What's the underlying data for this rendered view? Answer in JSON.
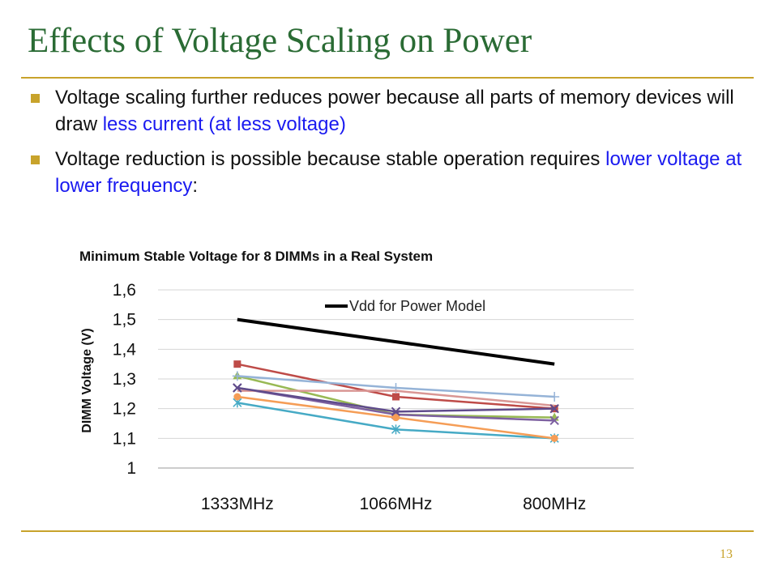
{
  "slide": {
    "title": "Effects of Voltage Scaling on Power",
    "bullets": [
      {
        "before": "Voltage scaling further reduces power because all parts of memory devices will draw ",
        "highlight": "less current (at less voltage)",
        "after": ""
      },
      {
        "before": "Voltage reduction is possible because stable operation requires ",
        "highlight": "lower voltage at lower frequency",
        "after": ":"
      }
    ],
    "page_number": "13",
    "colors": {
      "title": "#2a6b34",
      "rule": "#c8a32b",
      "highlight": "#1a1af0"
    }
  },
  "chart_data": {
    "type": "line",
    "title": "Minimum Stable Voltage for 8 DIMMs in a Real System",
    "xlabel": "",
    "ylabel": "DIMM Voltage (V)",
    "categories": [
      "1333MHz",
      "1066MHz",
      "800MHz"
    ],
    "ylim": [
      1,
      1.6
    ],
    "yticks": [
      "1",
      "1,1",
      "1,2",
      "1,3",
      "1,4",
      "1,5",
      "1,6"
    ],
    "grid": true,
    "legend_position": "top-right",
    "series": [
      {
        "name": "Vdd for Power Model",
        "values": [
          1.5,
          1.425,
          1.35
        ],
        "color": "#000000",
        "marker": "none",
        "width": 4
      },
      {
        "values": [
          1.35,
          1.24,
          1.2
        ],
        "color": "#be4b48",
        "marker": "square",
        "width": 2.5
      },
      {
        "values": [
          1.31,
          1.18,
          1.17
        ],
        "color": "#98b954",
        "marker": "triangle",
        "width": 2.5
      },
      {
        "values": [
          1.27,
          1.18,
          1.16
        ],
        "color": "#7d60a0",
        "marker": "x",
        "width": 2.5
      },
      {
        "values": [
          1.22,
          1.13,
          1.1
        ],
        "color": "#46aac5",
        "marker": "star",
        "width": 2.5
      },
      {
        "values": [
          1.24,
          1.17,
          1.1
        ],
        "color": "#f59d56",
        "marker": "circle",
        "width": 2.5
      },
      {
        "values": [
          1.31,
          1.27,
          1.24
        ],
        "color": "#95b3d7",
        "marker": "plus",
        "width": 2.5
      },
      {
        "values": [
          1.26,
          1.26,
          1.21
        ],
        "color": "#d99694",
        "marker": "none",
        "width": 2.5
      },
      {
        "values": [
          1.27,
          1.19,
          1.2
        ],
        "color": "#5f4b8b",
        "marker": "x",
        "width": 2.5
      }
    ]
  }
}
